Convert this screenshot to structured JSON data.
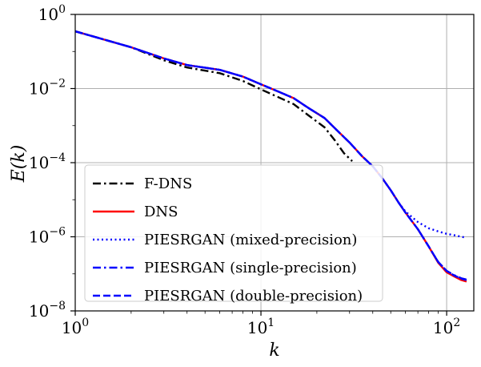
{
  "chart_data": {
    "type": "line",
    "title": "",
    "xlabel": "k",
    "ylabel": "E(k)",
    "xscale": "log",
    "yscale": "log",
    "xlim": [
      1,
      140
    ],
    "ylim": [
      1e-08,
      1
    ],
    "grid": true,
    "legend_location": "lower-left",
    "x_ticks": [
      {
        "value": 1,
        "base": "10",
        "exp": "0"
      },
      {
        "value": 10,
        "base": "10",
        "exp": "1"
      },
      {
        "value": 100,
        "base": "10",
        "exp": "2"
      }
    ],
    "y_ticks": [
      {
        "value": 1e-08,
        "base": "10",
        "exp": "−8"
      },
      {
        "value": 1e-06,
        "base": "10",
        "exp": "−6"
      },
      {
        "value": 0.0001,
        "base": "10",
        "exp": "−4"
      },
      {
        "value": 0.01,
        "base": "10",
        "exp": "−2"
      },
      {
        "value": 1,
        "base": "10",
        "exp": "0"
      }
    ],
    "series": [
      {
        "name": "F-DNS",
        "color": "#000000",
        "style": "dashdot",
        "points": [
          [
            1,
            0.35
          ],
          [
            2,
            0.13
          ],
          [
            3,
            0.058
          ],
          [
            4,
            0.037
          ],
          [
            6,
            0.026
          ],
          [
            8,
            0.016
          ],
          [
            10,
            0.0095
          ],
          [
            12,
            0.0063
          ],
          [
            15,
            0.0038
          ],
          [
            18,
            0.0019
          ],
          [
            22,
            0.0009
          ],
          [
            25,
            0.0004
          ],
          [
            28,
            0.00018
          ],
          [
            31,
            0.00011
          ]
        ]
      },
      {
        "name": "DNS",
        "color": "#ff0000",
        "style": "solid",
        "points": [
          [
            1,
            0.35
          ],
          [
            2,
            0.13
          ],
          [
            3,
            0.065
          ],
          [
            4,
            0.043
          ],
          [
            6,
            0.032
          ],
          [
            8,
            0.021
          ],
          [
            10,
            0.013
          ],
          [
            12,
            0.0089
          ],
          [
            15,
            0.0055
          ],
          [
            18,
            0.003
          ],
          [
            22,
            0.0016
          ],
          [
            26,
            0.0007
          ],
          [
            30,
            0.00035
          ],
          [
            35,
            0.00015
          ],
          [
            40,
            8e-05
          ],
          [
            45,
            3.8e-05
          ],
          [
            50,
            1.8e-05
          ],
          [
            55,
            8.5e-06
          ],
          [
            60,
            4.5e-06
          ],
          [
            70,
            1.6e-06
          ],
          [
            80,
            5.5e-07
          ],
          [
            90,
            2e-07
          ],
          [
            100,
            1.1e-07
          ],
          [
            110,
            8.5e-08
          ],
          [
            120,
            6.8e-08
          ],
          [
            128,
            6.2e-08
          ]
        ]
      },
      {
        "name": "PIESRGAN (mixed-precision)",
        "color": "#0000ff",
        "style": "dotted",
        "points": [
          [
            1,
            0.35
          ],
          [
            2,
            0.13
          ],
          [
            3,
            0.065
          ],
          [
            4,
            0.043
          ],
          [
            6,
            0.032
          ],
          [
            8,
            0.021
          ],
          [
            10,
            0.013
          ],
          [
            12,
            0.0089
          ],
          [
            15,
            0.0055
          ],
          [
            18,
            0.003
          ],
          [
            22,
            0.0016
          ],
          [
            26,
            0.0007
          ],
          [
            30,
            0.00035
          ],
          [
            35,
            0.00015
          ],
          [
            40,
            8e-05
          ],
          [
            45,
            3.8e-05
          ],
          [
            50,
            1.8e-05
          ],
          [
            55,
            8.5e-06
          ],
          [
            60,
            4.8e-06
          ],
          [
            70,
            2.5e-06
          ],
          [
            80,
            1.7e-06
          ],
          [
            90,
            1.4e-06
          ],
          [
            100,
            1.2e-06
          ],
          [
            110,
            1.1e-06
          ],
          [
            120,
            1e-06
          ],
          [
            128,
            9.5e-07
          ]
        ]
      },
      {
        "name": "PIESRGAN (single-precision)",
        "color": "#0000ff",
        "style": "dashdot",
        "points": [
          [
            1,
            0.35
          ],
          [
            2,
            0.13
          ],
          [
            3,
            0.065
          ],
          [
            4,
            0.043
          ],
          [
            6,
            0.032
          ],
          [
            8,
            0.021
          ],
          [
            10,
            0.013
          ],
          [
            12,
            0.0089
          ],
          [
            15,
            0.0055
          ],
          [
            18,
            0.003
          ],
          [
            22,
            0.0016
          ],
          [
            26,
            0.0007
          ],
          [
            30,
            0.00035
          ],
          [
            35,
            0.00015
          ],
          [
            40,
            8e-05
          ],
          [
            45,
            3.8e-05
          ],
          [
            50,
            1.8e-05
          ],
          [
            55,
            8.5e-06
          ],
          [
            60,
            4.5e-06
          ],
          [
            70,
            1.6e-06
          ],
          [
            80,
            5.5e-07
          ],
          [
            90,
            2.1e-07
          ],
          [
            100,
            1.2e-07
          ],
          [
            110,
            9.2e-08
          ],
          [
            120,
            7.6e-08
          ],
          [
            128,
            7e-08
          ]
        ]
      },
      {
        "name": "PIESRGAN (double-precision)",
        "color": "#0000ff",
        "style": "dashed",
        "points": [
          [
            1,
            0.35
          ],
          [
            2,
            0.13
          ],
          [
            3,
            0.065
          ],
          [
            4,
            0.043
          ],
          [
            6,
            0.032
          ],
          [
            8,
            0.021
          ],
          [
            10,
            0.013
          ],
          [
            12,
            0.0089
          ],
          [
            15,
            0.0055
          ],
          [
            18,
            0.003
          ],
          [
            22,
            0.0016
          ],
          [
            26,
            0.0007
          ],
          [
            30,
            0.00035
          ],
          [
            35,
            0.00015
          ],
          [
            40,
            8e-05
          ],
          [
            45,
            3.8e-05
          ],
          [
            50,
            1.8e-05
          ],
          [
            55,
            8.5e-06
          ],
          [
            60,
            4.5e-06
          ],
          [
            70,
            1.6e-06
          ],
          [
            80,
            5.5e-07
          ],
          [
            90,
            2.1e-07
          ],
          [
            100,
            1.2e-07
          ],
          [
            110,
            9e-08
          ],
          [
            120,
            7.4e-08
          ],
          [
            128,
            6.8e-08
          ]
        ]
      }
    ]
  }
}
